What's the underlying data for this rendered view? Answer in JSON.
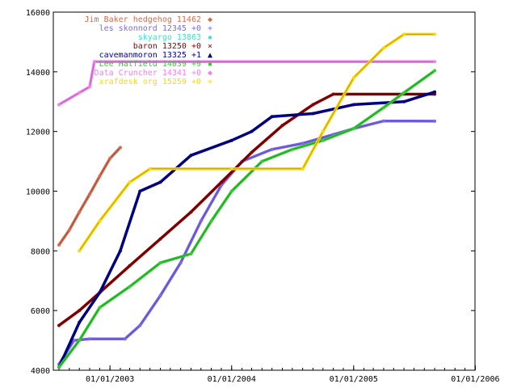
{
  "chart_data": {
    "type": "line",
    "title": "",
    "xlabel": "",
    "ylabel": "",
    "ylim": [
      4000,
      16000
    ],
    "xlim": [
      "2002-07-15",
      "2005-12-31"
    ],
    "grid": false,
    "legend": "top-left inside",
    "x_ticks": [
      {
        "date": "2003-01-01",
        "label": "01/01/2003"
      },
      {
        "date": "2004-01-01",
        "label": "01/01/2004"
      },
      {
        "date": "2005-01-01",
        "label": "01/01/2005"
      },
      {
        "date": "2006-01-01",
        "label": "01/01/2006"
      }
    ],
    "y_ticks": [
      4000,
      6000,
      8000,
      10000,
      12000,
      14000,
      16000
    ],
    "series": [
      {
        "name": "Jim Baker   hedgehog 11462",
        "color": "#d56b4f",
        "marker": "◆",
        "points": [
          [
            "2002-08-01",
            8200
          ],
          [
            "2002-09-01",
            8700
          ],
          [
            "2002-10-01",
            9300
          ],
          [
            "2002-11-01",
            9900
          ],
          [
            "2002-12-01",
            10500
          ],
          [
            "2003-01-01",
            11100
          ],
          [
            "2003-02-01",
            11462
          ]
        ]
      },
      {
        "name": "les skonnord 12345 +0",
        "color": "#7b68ee",
        "marker": "+",
        "points": [
          [
            "2002-08-01",
            4200
          ],
          [
            "2002-09-15",
            5000
          ],
          [
            "2002-11-01",
            5050
          ],
          [
            "2003-02-15",
            5050
          ],
          [
            "2003-04-01",
            5500
          ],
          [
            "2003-06-01",
            6500
          ],
          [
            "2003-08-01",
            7600
          ],
          [
            "2003-10-01",
            9000
          ],
          [
            "2003-12-01",
            10200
          ],
          [
            "2004-02-01",
            11000
          ],
          [
            "2004-05-01",
            11400
          ],
          [
            "2004-08-01",
            11600
          ],
          [
            "2004-11-01",
            11900
          ],
          [
            "2005-01-01",
            12100
          ],
          [
            "2005-04-01",
            12350
          ],
          [
            "2005-09-01",
            12345
          ]
        ]
      },
      {
        "name": "skyargo 13863",
        "color": "#40e0d0",
        "marker": "▪",
        "points": []
      },
      {
        "name": "baron  13250 +0",
        "color": "#8b0000",
        "marker": "×",
        "points": [
          [
            "2002-08-01",
            5500
          ],
          [
            "2002-10-01",
            6000
          ],
          [
            "2002-12-01",
            6600
          ],
          [
            "2003-03-01",
            7500
          ],
          [
            "2003-06-01",
            8400
          ],
          [
            "2003-09-01",
            9300
          ],
          [
            "2003-12-01",
            10300
          ],
          [
            "2004-03-01",
            11300
          ],
          [
            "2004-06-01",
            12200
          ],
          [
            "2004-09-01",
            12900
          ],
          [
            "2004-11-01",
            13250
          ],
          [
            "2005-09-01",
            13250
          ]
        ]
      },
      {
        "name": "cavemanmoron 13325 +1",
        "color": "#00008b",
        "marker": "▲",
        "points": [
          [
            "2002-08-01",
            4100
          ],
          [
            "2002-10-01",
            5600
          ],
          [
            "2002-12-01",
            6600
          ],
          [
            "2003-02-01",
            8000
          ],
          [
            "2003-04-01",
            10000
          ],
          [
            "2003-06-01",
            10300
          ],
          [
            "2003-09-01",
            11200
          ],
          [
            "2004-01-01",
            11700
          ],
          [
            "2004-03-01",
            12000
          ],
          [
            "2004-05-01",
            12500
          ],
          [
            "2004-09-01",
            12600
          ],
          [
            "2005-01-01",
            12900
          ],
          [
            "2005-06-01",
            13000
          ],
          [
            "2005-09-01",
            13325
          ]
        ]
      },
      {
        "name": "Lee Hatfield 14039 +9",
        "color": "#32cd32",
        "marker": "▪",
        "points": [
          [
            "2002-08-01",
            4100
          ],
          [
            "2002-10-01",
            5000
          ],
          [
            "2002-12-01",
            6100
          ],
          [
            "2003-03-01",
            6800
          ],
          [
            "2003-06-01",
            7600
          ],
          [
            "2003-09-01",
            7900
          ],
          [
            "2003-11-01",
            9000
          ],
          [
            "2004-01-01",
            10000
          ],
          [
            "2004-04-01",
            11000
          ],
          [
            "2004-07-01",
            11400
          ],
          [
            "2004-10-01",
            11700
          ],
          [
            "2005-01-01",
            12100
          ],
          [
            "2005-04-01",
            12800
          ],
          [
            "2005-06-01",
            13300
          ],
          [
            "2005-09-01",
            14039
          ]
        ]
      },
      {
        "name": "Data Cruncher 14341 +0",
        "color": "#ee82ee",
        "marker": "◆",
        "points": [
          [
            "2002-08-01",
            12900
          ],
          [
            "2002-10-01",
            13300
          ],
          [
            "2002-11-01",
            13500
          ],
          [
            "2002-11-15",
            14341
          ],
          [
            "2005-09-01",
            14341
          ]
        ]
      },
      {
        "name": "xrafdesk org 15259 +0",
        "color": "#ffd700",
        "marker": "+",
        "points": [
          [
            "2002-10-01",
            8000
          ],
          [
            "2002-12-01",
            9000
          ],
          [
            "2003-03-01",
            10300
          ],
          [
            "2003-05-01",
            10750
          ],
          [
            "2004-01-01",
            10750
          ],
          [
            "2004-08-01",
            10750
          ],
          [
            "2004-10-01",
            12000
          ],
          [
            "2005-01-01",
            13800
          ],
          [
            "2005-04-01",
            14800
          ],
          [
            "2005-06-01",
            15259
          ],
          [
            "2005-09-01",
            15259
          ]
        ]
      }
    ]
  }
}
